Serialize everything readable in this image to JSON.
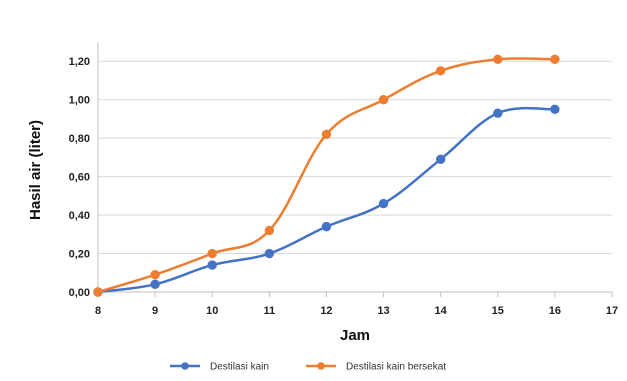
{
  "chart_data": {
    "type": "line",
    "title": "",
    "xlabel": "Jam",
    "ylabel": "Hasil air (liter)",
    "x_ticks": [
      8,
      9,
      10,
      11,
      12,
      13,
      14,
      15,
      16,
      17
    ],
    "xlim": [
      8,
      17
    ],
    "ylim": [
      0,
      1.3
    ],
    "y_ticks": [
      "0,00",
      "0,20",
      "0,40",
      "0,60",
      "0,80",
      "1,00",
      "1,20"
    ],
    "y_tick_values": [
      0,
      0.2,
      0.4,
      0.6,
      0.8,
      1.0,
      1.2
    ],
    "grid": "horizontal",
    "legend_position": "bottom",
    "series": [
      {
        "name": "Destilasi kain",
        "color": "#4472C4",
        "x": [
          8,
          9,
          10,
          11,
          12,
          13,
          14,
          15,
          16
        ],
        "values": [
          0.0,
          0.04,
          0.14,
          0.2,
          0.34,
          0.46,
          0.69,
          0.93,
          0.95
        ]
      },
      {
        "name": "Destilasi kain bersekat",
        "color": "#ED7D31",
        "x": [
          8,
          9,
          10,
          11,
          12,
          13,
          14,
          15,
          16
        ],
        "values": [
          0.0,
          0.09,
          0.2,
          0.32,
          0.82,
          1.0,
          1.15,
          1.21,
          1.21
        ]
      }
    ]
  }
}
